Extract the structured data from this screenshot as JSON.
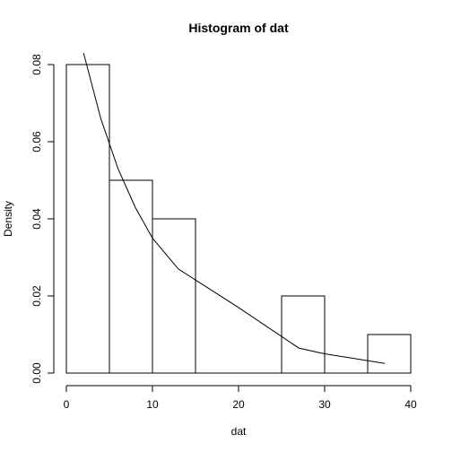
{
  "chart_data": {
    "type": "bar",
    "title": "Histogram of dat",
    "xlabel": "dat",
    "ylabel": "Density",
    "xlim": [
      0,
      40
    ],
    "ylim": [
      0,
      0.08
    ],
    "x_ticks": [
      0,
      10,
      20,
      30,
      40
    ],
    "x_tick_labels": [
      "0",
      "10",
      "20",
      "30",
      "40"
    ],
    "y_ticks": [
      0,
      0.02,
      0.04,
      0.06,
      0.08
    ],
    "y_tick_labels": [
      "0.00",
      "0.02",
      "0.04",
      "0.06",
      "0.08"
    ],
    "bins": [
      {
        "x0": 0,
        "x1": 5,
        "density": 0.08
      },
      {
        "x0": 5,
        "x1": 10,
        "density": 0.05
      },
      {
        "x0": 10,
        "x1": 15,
        "density": 0.04
      },
      {
        "x0": 15,
        "x1": 20,
        "density": 0.0
      },
      {
        "x0": 20,
        "x1": 25,
        "density": 0.0
      },
      {
        "x0": 25,
        "x1": 30,
        "density": 0.02
      },
      {
        "x0": 30,
        "x1": 35,
        "density": 0.0
      },
      {
        "x0": 35,
        "x1": 40,
        "density": 0.01
      }
    ],
    "series": [
      {
        "type": "line",
        "x": [
          2,
          4,
          6,
          8,
          10,
          13,
          20,
          27,
          30,
          37
        ],
        "y": [
          0.083,
          0.066,
          0.053,
          0.043,
          0.035,
          0.027,
          0.017,
          0.0065,
          0.005,
          0.0025
        ]
      }
    ],
    "grid": false
  }
}
